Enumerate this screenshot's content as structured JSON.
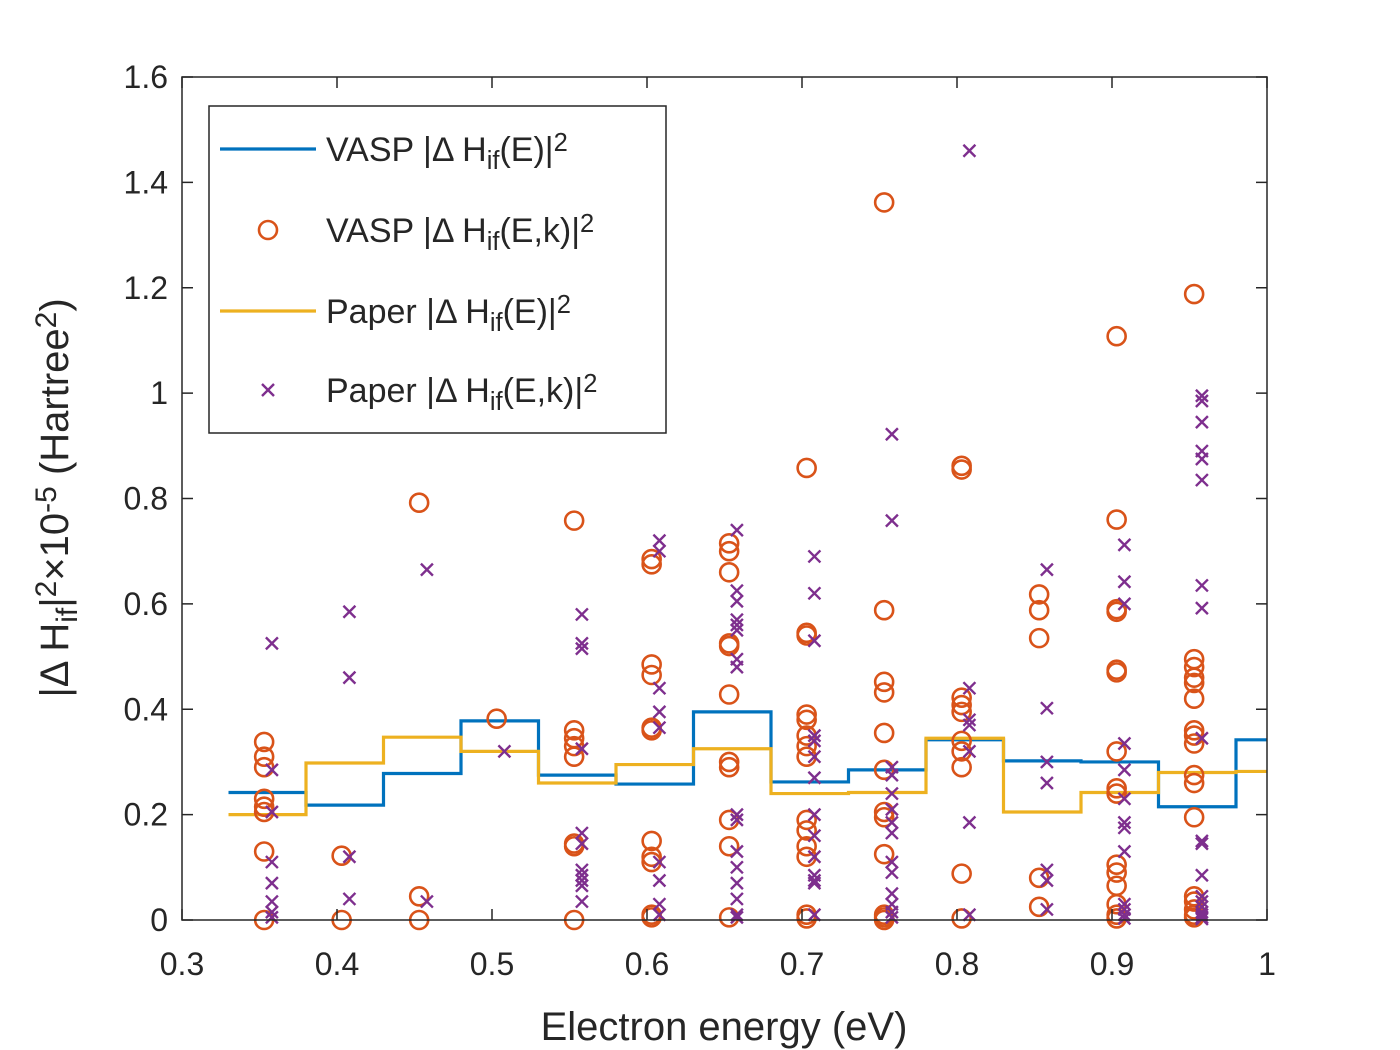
{
  "chart_data": {
    "type": "scatter",
    "xlabel": "Electron energy (eV)",
    "ylabel_parts": [
      "|Δ H",
      "if",
      "|",
      "2",
      "×10",
      "-5",
      " (Hartree",
      "2",
      ")"
    ],
    "xlim": [
      0.3,
      1.0
    ],
    "ylim": [
      0,
      1.6
    ],
    "xticks": [
      "0.3",
      "0.4",
      "0.5",
      "0.6",
      "0.7",
      "0.8",
      "0.9",
      "1"
    ],
    "yticks": [
      "0",
      "0.2",
      "0.4",
      "0.6",
      "0.8",
      "1",
      "1.2",
      "1.4",
      "1.6"
    ],
    "grid": false,
    "legend_position": "top-left",
    "colors": {
      "vasp_line": "#0072BD",
      "vasp_points": "#D95319",
      "paper_line": "#EDB120",
      "paper_points": "#7E2F8E"
    },
    "legend": [
      {
        "parts": [
          "VASP |Δ H",
          "if",
          "(E)|",
          "2"
        ],
        "style": "line",
        "color": "#0072BD"
      },
      {
        "parts": [
          "VASP |Δ H",
          "if",
          "(E,k)|",
          "2"
        ],
        "style": "circle",
        "color": "#D95319"
      },
      {
        "parts": [
          "Paper |Δ H",
          "if",
          "(E)|",
          "2"
        ],
        "style": "line",
        "color": "#EDB120"
      },
      {
        "parts": [
          "Paper |Δ H",
          "if",
          "(E,k)|",
          "2"
        ],
        "style": "x",
        "color": "#7E2F8E"
      }
    ],
    "series": [
      {
        "kind": "step",
        "color": "#0072BD",
        "edges": [
          0.33,
          0.38,
          0.43,
          0.48,
          0.53,
          0.58,
          0.63,
          0.68,
          0.73,
          0.78,
          0.83,
          0.88,
          0.93,
          0.98,
          1.0
        ],
        "values": [
          0.242,
          0.218,
          0.278,
          0.378,
          0.275,
          0.258,
          0.395,
          0.262,
          0.285,
          0.342,
          0.302,
          0.3,
          0.215,
          0.342
        ]
      },
      {
        "kind": "step",
        "color": "#EDB120",
        "edges": [
          0.33,
          0.38,
          0.43,
          0.48,
          0.53,
          0.58,
          0.63,
          0.68,
          0.73,
          0.78,
          0.83,
          0.88,
          0.93,
          0.98,
          1.0
        ],
        "values": [
          0.2,
          0.298,
          0.347,
          0.32,
          0.26,
          0.295,
          0.325,
          0.24,
          0.242,
          0.345,
          0.205,
          0.242,
          0.28,
          0.282
        ]
      },
      {
        "kind": "circles",
        "color": "#D95319",
        "points": [
          [
            0.353,
            0.338
          ],
          [
            0.353,
            0.31
          ],
          [
            0.353,
            0.29
          ],
          [
            0.353,
            0.23
          ],
          [
            0.353,
            0.215
          ],
          [
            0.353,
            0.205
          ],
          [
            0.353,
            0.13
          ],
          [
            0.353,
            0.0
          ],
          [
            0.403,
            0.122
          ],
          [
            0.403,
            0.0
          ],
          [
            0.453,
            0.792
          ],
          [
            0.453,
            0.045
          ],
          [
            0.453,
            0.0
          ],
          [
            0.503,
            0.382
          ],
          [
            0.553,
            0.758
          ],
          [
            0.553,
            0.36
          ],
          [
            0.553,
            0.345
          ],
          [
            0.553,
            0.33
          ],
          [
            0.553,
            0.31
          ],
          [
            0.553,
            0.145
          ],
          [
            0.553,
            0.14
          ],
          [
            0.553,
            0.0
          ],
          [
            0.603,
            0.685
          ],
          [
            0.603,
            0.675
          ],
          [
            0.603,
            0.485
          ],
          [
            0.603,
            0.465
          ],
          [
            0.603,
            0.365
          ],
          [
            0.603,
            0.36
          ],
          [
            0.603,
            0.15
          ],
          [
            0.603,
            0.12
          ],
          [
            0.603,
            0.11
          ],
          [
            0.603,
            0.01
          ],
          [
            0.603,
            0.005
          ],
          [
            0.653,
            0.715
          ],
          [
            0.653,
            0.7
          ],
          [
            0.653,
            0.66
          ],
          [
            0.653,
            0.525
          ],
          [
            0.653,
            0.52
          ],
          [
            0.653,
            0.428
          ],
          [
            0.653,
            0.3
          ],
          [
            0.653,
            0.29
          ],
          [
            0.653,
            0.19
          ],
          [
            0.653,
            0.14
          ],
          [
            0.653,
            0.005
          ],
          [
            0.703,
            0.858
          ],
          [
            0.703,
            0.545
          ],
          [
            0.703,
            0.54
          ],
          [
            0.703,
            0.39
          ],
          [
            0.703,
            0.38
          ],
          [
            0.703,
            0.35
          ],
          [
            0.703,
            0.33
          ],
          [
            0.703,
            0.31
          ],
          [
            0.703,
            0.19
          ],
          [
            0.703,
            0.17
          ],
          [
            0.703,
            0.14
          ],
          [
            0.703,
            0.12
          ],
          [
            0.703,
            0.01
          ],
          [
            0.703,
            0.003
          ],
          [
            0.753,
            1.362
          ],
          [
            0.753,
            0.588
          ],
          [
            0.753,
            0.452
          ],
          [
            0.753,
            0.432
          ],
          [
            0.753,
            0.355
          ],
          [
            0.753,
            0.285
          ],
          [
            0.753,
            0.205
          ],
          [
            0.753,
            0.195
          ],
          [
            0.753,
            0.125
          ],
          [
            0.753,
            0.01
          ],
          [
            0.753,
            0.005
          ],
          [
            0.753,
            0.0
          ],
          [
            0.803,
            0.862
          ],
          [
            0.803,
            0.855
          ],
          [
            0.803,
            0.422
          ],
          [
            0.803,
            0.408
          ],
          [
            0.803,
            0.395
          ],
          [
            0.803,
            0.34
          ],
          [
            0.803,
            0.32
          ],
          [
            0.803,
            0.29
          ],
          [
            0.803,
            0.088
          ],
          [
            0.803,
            0.003
          ],
          [
            0.853,
            0.618
          ],
          [
            0.853,
            0.588
          ],
          [
            0.853,
            0.535
          ],
          [
            0.853,
            0.08
          ],
          [
            0.853,
            0.025
          ],
          [
            0.903,
            1.108
          ],
          [
            0.903,
            0.76
          ],
          [
            0.903,
            0.59
          ],
          [
            0.903,
            0.585
          ],
          [
            0.903,
            0.475
          ],
          [
            0.903,
            0.47
          ],
          [
            0.903,
            0.32
          ],
          [
            0.903,
            0.25
          ],
          [
            0.903,
            0.24
          ],
          [
            0.903,
            0.105
          ],
          [
            0.903,
            0.09
          ],
          [
            0.903,
            0.065
          ],
          [
            0.903,
            0.03
          ],
          [
            0.903,
            0.01
          ],
          [
            0.903,
            0.003
          ],
          [
            0.953,
            1.188
          ],
          [
            0.953,
            0.495
          ],
          [
            0.953,
            0.48
          ],
          [
            0.953,
            0.46
          ],
          [
            0.953,
            0.45
          ],
          [
            0.953,
            0.42
          ],
          [
            0.953,
            0.36
          ],
          [
            0.953,
            0.35
          ],
          [
            0.953,
            0.335
          ],
          [
            0.953,
            0.275
          ],
          [
            0.953,
            0.26
          ],
          [
            0.953,
            0.195
          ],
          [
            0.953,
            0.045
          ],
          [
            0.953,
            0.035
          ],
          [
            0.953,
            0.02
          ],
          [
            0.953,
            0.01
          ],
          [
            0.953,
            0.005
          ]
        ]
      },
      {
        "kind": "crosses",
        "color": "#7E2F8E",
        "points": [
          [
            0.358,
            0.525
          ],
          [
            0.358,
            0.285
          ],
          [
            0.358,
            0.205
          ],
          [
            0.358,
            0.11
          ],
          [
            0.358,
            0.07
          ],
          [
            0.358,
            0.035
          ],
          [
            0.358,
            0.015
          ],
          [
            0.358,
            0.005
          ],
          [
            0.408,
            0.585
          ],
          [
            0.408,
            0.46
          ],
          [
            0.408,
            0.12
          ],
          [
            0.408,
            0.04
          ],
          [
            0.458,
            0.665
          ],
          [
            0.458,
            0.035
          ],
          [
            0.508,
            0.32
          ],
          [
            0.558,
            0.58
          ],
          [
            0.558,
            0.525
          ],
          [
            0.558,
            0.515
          ],
          [
            0.558,
            0.325
          ],
          [
            0.558,
            0.165
          ],
          [
            0.558,
            0.145
          ],
          [
            0.558,
            0.095
          ],
          [
            0.558,
            0.085
          ],
          [
            0.558,
            0.075
          ],
          [
            0.558,
            0.065
          ],
          [
            0.558,
            0.035
          ],
          [
            0.608,
            0.72
          ],
          [
            0.608,
            0.7
          ],
          [
            0.608,
            0.44
          ],
          [
            0.608,
            0.395
          ],
          [
            0.608,
            0.365
          ],
          [
            0.608,
            0.11
          ],
          [
            0.608,
            0.075
          ],
          [
            0.608,
            0.03
          ],
          [
            0.608,
            0.01
          ],
          [
            0.658,
            0.74
          ],
          [
            0.658,
            0.625
          ],
          [
            0.658,
            0.605
          ],
          [
            0.658,
            0.57
          ],
          [
            0.658,
            0.56
          ],
          [
            0.658,
            0.55
          ],
          [
            0.658,
            0.495
          ],
          [
            0.658,
            0.48
          ],
          [
            0.658,
            0.2
          ],
          [
            0.658,
            0.19
          ],
          [
            0.658,
            0.13
          ],
          [
            0.658,
            0.1
          ],
          [
            0.658,
            0.07
          ],
          [
            0.658,
            0.04
          ],
          [
            0.658,
            0.01
          ],
          [
            0.658,
            0.005
          ],
          [
            0.708,
            0.69
          ],
          [
            0.708,
            0.62
          ],
          [
            0.708,
            0.53
          ],
          [
            0.708,
            0.35
          ],
          [
            0.708,
            0.34
          ],
          [
            0.708,
            0.31
          ],
          [
            0.708,
            0.27
          ],
          [
            0.708,
            0.2
          ],
          [
            0.708,
            0.16
          ],
          [
            0.708,
            0.12
          ],
          [
            0.708,
            0.085
          ],
          [
            0.708,
            0.075
          ],
          [
            0.708,
            0.07
          ],
          [
            0.708,
            0.01
          ],
          [
            0.758,
            0.922
          ],
          [
            0.758,
            0.758
          ],
          [
            0.758,
            0.29
          ],
          [
            0.758,
            0.275
          ],
          [
            0.758,
            0.24
          ],
          [
            0.758,
            0.21
          ],
          [
            0.758,
            0.185
          ],
          [
            0.758,
            0.165
          ],
          [
            0.758,
            0.11
          ],
          [
            0.758,
            0.09
          ],
          [
            0.758,
            0.05
          ],
          [
            0.758,
            0.03
          ],
          [
            0.758,
            0.015
          ],
          [
            0.758,
            0.005
          ],
          [
            0.808,
            1.46
          ],
          [
            0.808,
            0.44
          ],
          [
            0.808,
            0.38
          ],
          [
            0.808,
            0.37
          ],
          [
            0.808,
            0.32
          ],
          [
            0.808,
            0.185
          ],
          [
            0.808,
            0.01
          ],
          [
            0.858,
            0.665
          ],
          [
            0.858,
            0.402
          ],
          [
            0.858,
            0.3
          ],
          [
            0.858,
            0.26
          ],
          [
            0.858,
            0.095
          ],
          [
            0.858,
            0.075
          ],
          [
            0.858,
            0.02
          ],
          [
            0.908,
            0.712
          ],
          [
            0.908,
            0.642
          ],
          [
            0.908,
            0.6
          ],
          [
            0.908,
            0.335
          ],
          [
            0.908,
            0.285
          ],
          [
            0.908,
            0.23
          ],
          [
            0.908,
            0.185
          ],
          [
            0.908,
            0.175
          ],
          [
            0.908,
            0.13
          ],
          [
            0.908,
            0.03
          ],
          [
            0.908,
            0.02
          ],
          [
            0.908,
            0.01
          ],
          [
            0.908,
            0.003
          ],
          [
            0.958,
            0.995
          ],
          [
            0.958,
            0.985
          ],
          [
            0.958,
            0.945
          ],
          [
            0.958,
            0.89
          ],
          [
            0.958,
            0.875
          ],
          [
            0.958,
            0.835
          ],
          [
            0.958,
            0.635
          ],
          [
            0.958,
            0.592
          ],
          [
            0.958,
            0.345
          ],
          [
            0.958,
            0.15
          ],
          [
            0.958,
            0.145
          ],
          [
            0.958,
            0.085
          ],
          [
            0.958,
            0.045
          ],
          [
            0.958,
            0.035
          ],
          [
            0.958,
            0.025
          ],
          [
            0.958,
            0.015
          ],
          [
            0.958,
            0.01
          ],
          [
            0.958,
            0.005
          ],
          [
            0.958,
            0.002
          ]
        ]
      }
    ]
  }
}
